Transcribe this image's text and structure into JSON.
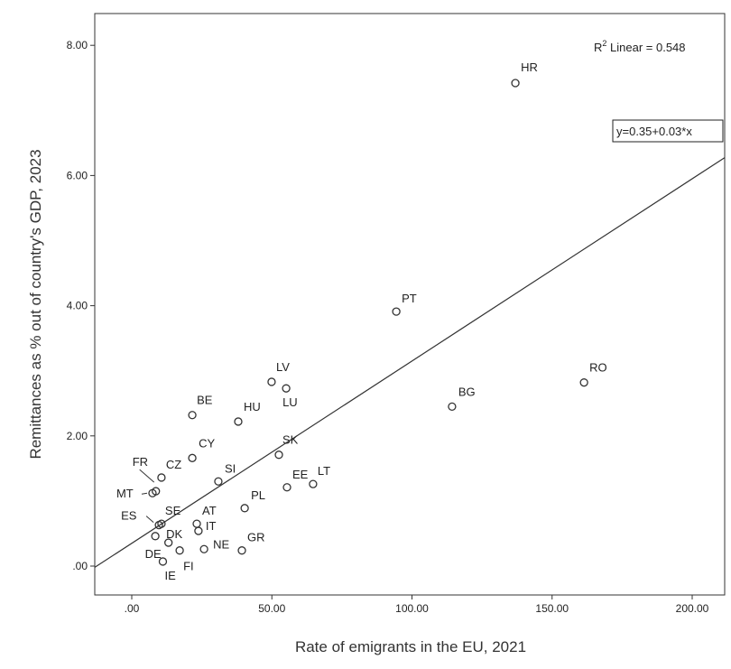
{
  "chart_data": {
    "type": "scatter",
    "title": "",
    "xlabel": "Rate of emigrants in the EU, 2021",
    "ylabel": "Remittances as % out of country's GDP, 2023",
    "xlim": [
      -13,
      212
    ],
    "ylim": [
      -0.45,
      8.5
    ],
    "xticks": [
      0,
      50,
      100,
      150,
      200
    ],
    "xtick_labels": [
      ".00",
      "50.00",
      "100.00",
      "150.00",
      "200.00"
    ],
    "yticks": [
      0,
      2,
      4,
      6,
      8
    ],
    "ytick_labels": [
      ".00",
      "2.00",
      "4.00",
      "6.00",
      "8.00"
    ],
    "grid": false,
    "r2_label": "R",
    "r2_sup": "2",
    "r2_text": " Linear = 0.548",
    "equation": "y=0.35+0.03*x",
    "fit": {
      "intercept": 0.35,
      "slope": 0.028
    },
    "points": [
      {
        "label": "HR",
        "x": 136.9,
        "y": 7.42
      },
      {
        "label": "PT",
        "x": 94.4,
        "y": 3.91
      },
      {
        "label": "RO",
        "x": 161.4,
        "y": 2.82
      },
      {
        "label": "BG",
        "x": 114.3,
        "y": 2.45
      },
      {
        "label": "LV",
        "x": 49.9,
        "y": 2.83
      },
      {
        "label": "LU",
        "x": 55.1,
        "y": 2.73
      },
      {
        "label": "BE",
        "x": 21.6,
        "y": 2.32
      },
      {
        "label": "HU",
        "x": 38.0,
        "y": 2.22
      },
      {
        "label": "CY",
        "x": 21.6,
        "y": 1.66
      },
      {
        "label": "SK",
        "x": 52.5,
        "y": 1.71
      },
      {
        "label": "CZ",
        "x": 10.6,
        "y": 1.36
      },
      {
        "label": "SI",
        "x": 30.9,
        "y": 1.3
      },
      {
        "label": "EE",
        "x": 55.4,
        "y": 1.21
      },
      {
        "label": "LT",
        "x": 64.7,
        "y": 1.26
      },
      {
        "label": "MT",
        "x": 7.4,
        "y": 1.12
      },
      {
        "label": "FR",
        "x": 8.6,
        "y": 1.15
      },
      {
        "label": "PL",
        "x": 40.3,
        "y": 0.89
      },
      {
        "label": "ES",
        "x": 9.7,
        "y": 0.63
      },
      {
        "label": "SE",
        "x": 10.6,
        "y": 0.65
      },
      {
        "label": "AT",
        "x": 23.2,
        "y": 0.65
      },
      {
        "label": "IT",
        "x": 23.8,
        "y": 0.54
      },
      {
        "label": "DK",
        "x": 8.4,
        "y": 0.46
      },
      {
        "label": "DE",
        "x": 13.1,
        "y": 0.36
      },
      {
        "label": "NE",
        "x": 25.8,
        "y": 0.26
      },
      {
        "label": "FI",
        "x": 17.1,
        "y": 0.24
      },
      {
        "label": "GR",
        "x": 39.3,
        "y": 0.24
      },
      {
        "label": "IE",
        "x": 11.1,
        "y": 0.07
      }
    ]
  }
}
